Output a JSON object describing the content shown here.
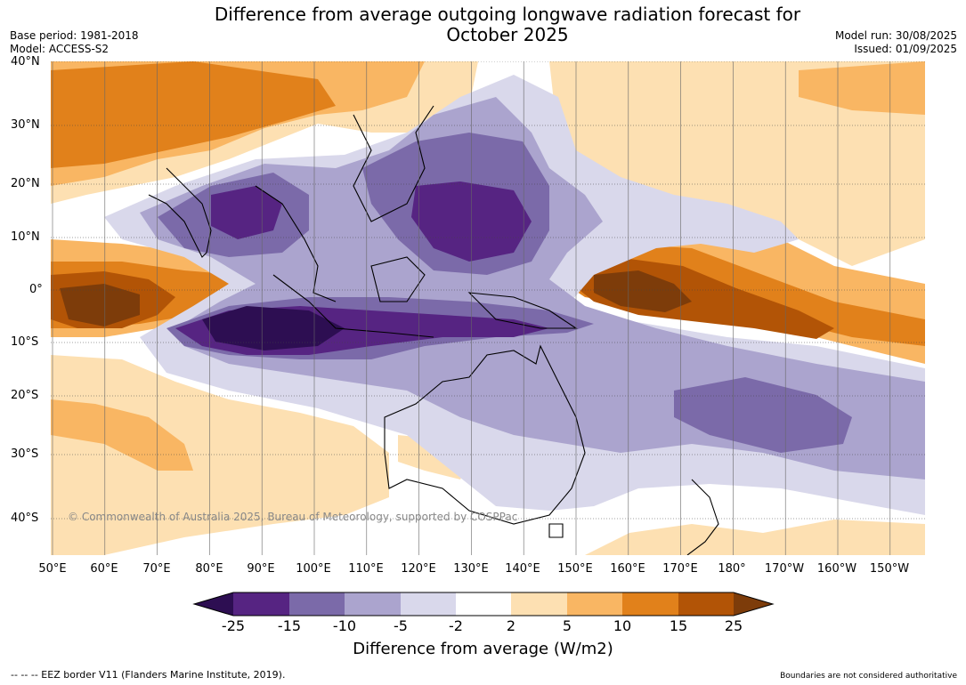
{
  "header": {
    "title_line1": "Difference from average outgoing longwave radiation forecast for",
    "title_line2": "October 2025",
    "base_period": "Base period: 1981-2018",
    "model": "Model: ACCESS-S2",
    "model_run": "Model run: 30/08/2025",
    "issued": "Issued: 01/09/2025"
  },
  "map": {
    "lat_labels": [
      "40°N",
      "30°N",
      "20°N",
      "10°N",
      "0°",
      "10°S",
      "20°S",
      "30°S",
      "40°S"
    ],
    "lon_labels": [
      "50°E",
      "60°E",
      "70°E",
      "80°E",
      "90°E",
      "100°E",
      "110°E",
      "120°E",
      "130°E",
      "140°E",
      "150°E",
      "160°E",
      "170°E",
      "180°",
      "170°W",
      "160°W",
      "150°W"
    ],
    "copyright": "© Commonwealth of Australia 2025, Bureau of Meteorology, supported by COSPPac",
    "colors": {
      "c_m25": "#2d0e52",
      "c_m15": "#562482",
      "c_m10": "#7b6aa9",
      "c_m5": "#aba4ce",
      "c_m2": "#d9d8eb",
      "c_0": "#ffffff",
      "c_2": "#fde0b2",
      "c_5": "#f9b663",
      "c_10": "#e1811b",
      "c_15": "#b25406",
      "c_25": "#7d3c0a"
    }
  },
  "colorbar": {
    "tick_labels": [
      "-25",
      "-15",
      "-10",
      "-5",
      "-2",
      "2",
      "5",
      "10",
      "15",
      "25"
    ],
    "title": "Difference from average (W/m2)"
  },
  "footer": {
    "eez_note": "--  --  -- EEZ border V11 (Flanders Marine Institute, 2019).",
    "disclaimer": "Boundaries are not considered authoritative"
  }
}
